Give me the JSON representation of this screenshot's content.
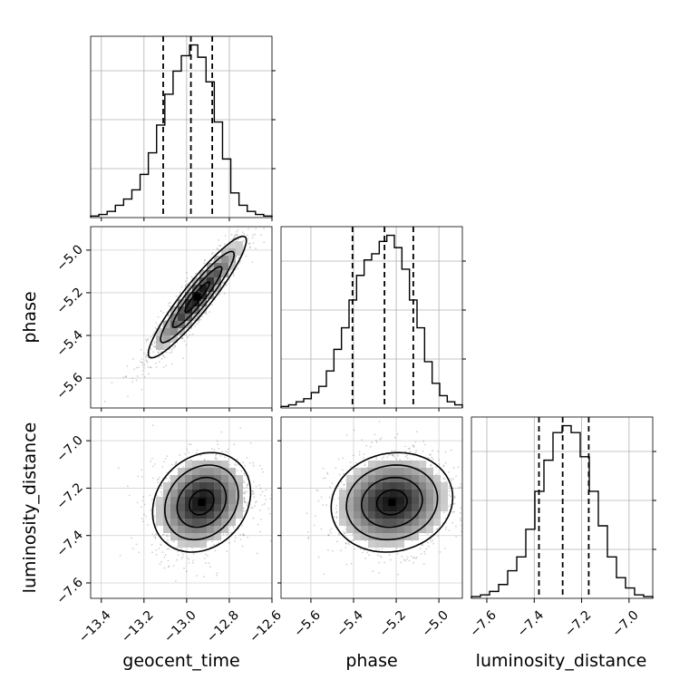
{
  "chart_data": {
    "type": "corner",
    "parameters": [
      "geocent_time",
      "phase",
      "luminosity_distance"
    ],
    "axis_labels": {
      "geocent_time": "geocent_time",
      "phase": "phase",
      "luminosity_distance": "luminosity_distance"
    },
    "ranges": {
      "geocent_time": [
        -13.45,
        -12.6
      ],
      "phase": [
        -5.74,
        -4.89
      ],
      "luminosity_distance": [
        -7.665,
        -6.9
      ]
    },
    "ticks": {
      "geocent_time": {
        "values": [
          -13.4,
          -13.2,
          -13.0,
          -12.8,
          -12.6
        ],
        "labels": [
          "−13.4",
          "−13.2",
          "−13.0",
          "−12.8",
          "−12.6"
        ]
      },
      "phase": {
        "values": [
          -5.6,
          -5.4,
          -5.2,
          -5.0
        ],
        "labels": [
          "−5.6",
          "−5.4",
          "−5.2",
          "−5.0"
        ]
      },
      "luminosity_distance": {
        "values": [
          -7.6,
          -7.4,
          -7.2,
          -7.0
        ],
        "labels": [
          "−7.6",
          "−7.4",
          "−7.2",
          "−7.0"
        ]
      }
    },
    "quantiles": {
      "geocent_time": [
        -13.11,
        -12.98,
        -12.88
      ],
      "phase": [
        -5.405,
        -5.255,
        -5.12
      ],
      "luminosity_distance": [
        -7.38,
        -7.28,
        -7.17
      ]
    },
    "histograms": {
      "geocent_time": {
        "counts": [
          1,
          2,
          4,
          8,
          12,
          18,
          28,
          42,
          60,
          80,
          95,
          105,
          112,
          104,
          88,
          62,
          38,
          16,
          8,
          4,
          2,
          1
        ]
      },
      "phase": {
        "counts": [
          1,
          2,
          4,
          6,
          10,
          14,
          24,
          38,
          52,
          70,
          86,
          96,
          100,
          108,
          112,
          104,
          90,
          70,
          52,
          30,
          16,
          8,
          4,
          2
        ]
      },
      "luminosity_distance": {
        "counts": [
          1,
          2,
          4,
          8,
          16,
          24,
          40,
          62,
          80,
          96,
          100,
          96,
          82,
          62,
          42,
          24,
          12,
          6,
          2,
          1
        ]
      }
    },
    "correlations": {
      "phase_vs_geocent_time": {
        "rho": 0.93,
        "peak": [
          -12.95,
          -5.22
        ]
      },
      "luminosity_distance_vs_geocent_time": {
        "rho": 0.2,
        "peak": [
          -12.93,
          -7.26
        ]
      },
      "luminosity_distance_vs_phase": {
        "rho": 0.1,
        "peak": [
          -5.22,
          -7.26
        ]
      }
    },
    "grid": true
  }
}
